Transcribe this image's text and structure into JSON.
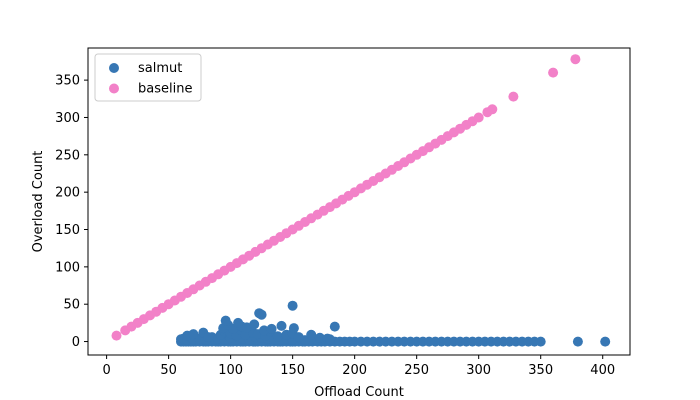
{
  "chart_data": {
    "type": "scatter",
    "title": "",
    "xlabel": "Offload Count",
    "ylabel": "Overload Count",
    "xlim": [
      -15,
      422
    ],
    "ylim": [
      -18,
      393
    ],
    "xticks": [
      0,
      50,
      100,
      150,
      200,
      250,
      300,
      350,
      400
    ],
    "yticks": [
      0,
      50,
      100,
      150,
      200,
      250,
      300,
      350
    ],
    "grid": false,
    "legend_position": "upper-left",
    "series": [
      {
        "name": "salmut",
        "color": "#3777b4",
        "x": [
          60,
          62,
          64,
          66,
          68,
          70,
          72,
          75,
          78,
          80,
          82,
          85,
          88,
          90,
          92,
          95,
          98,
          100,
          102,
          105,
          108,
          110,
          112,
          115,
          118,
          120,
          122,
          125,
          128,
          130,
          132,
          135,
          138,
          140,
          142,
          145,
          148,
          150,
          152,
          155,
          158,
          160,
          163,
          166,
          170,
          173,
          176,
          180,
          184,
          188,
          192,
          196,
          200,
          205,
          210,
          215,
          220,
          225,
          230,
          235,
          240,
          245,
          250,
          255,
          260,
          265,
          270,
          275,
          280,
          285,
          290,
          295,
          300,
          305,
          310,
          315,
          320,
          325,
          330,
          335,
          340,
          345,
          350,
          380,
          402,
          60,
          62,
          65,
          68,
          70,
          75,
          80,
          85,
          90,
          95,
          100,
          105,
          110,
          115,
          120,
          125,
          130,
          135,
          140,
          145,
          150,
          160,
          170,
          65,
          70,
          78,
          82,
          92,
          95,
          100,
          105,
          108,
          112,
          118,
          122,
          128,
          132,
          138,
          145,
          150,
          155,
          165,
          172,
          178,
          180,
          94,
          98,
          102,
          109,
          113,
          119,
          127,
          133,
          141,
          151,
          184,
          96,
          106,
          123,
          125,
          150
        ],
        "y": [
          0,
          0,
          0,
          0,
          0,
          0,
          0,
          0,
          0,
          0,
          0,
          0,
          0,
          0,
          0,
          0,
          0,
          0,
          0,
          0,
          0,
          0,
          0,
          0,
          0,
          0,
          0,
          0,
          0,
          0,
          0,
          0,
          0,
          0,
          0,
          0,
          0,
          0,
          0,
          0,
          0,
          0,
          0,
          0,
          0,
          0,
          0,
          0,
          0,
          0,
          0,
          0,
          0,
          0,
          0,
          0,
          0,
          0,
          0,
          0,
          0,
          0,
          0,
          0,
          0,
          0,
          0,
          0,
          0,
          0,
          0,
          0,
          0,
          0,
          0,
          0,
          0,
          0,
          0,
          0,
          0,
          0,
          0,
          0,
          0,
          3,
          4,
          2,
          5,
          3,
          4,
          2,
          6,
          4,
          3,
          5,
          7,
          4,
          3,
          6,
          5,
          4,
          3,
          2,
          4,
          3,
          2,
          2,
          8,
          10,
          12,
          6,
          9,
          14,
          11,
          8,
          16,
          9,
          12,
          10,
          8,
          13,
          7,
          9,
          11,
          6,
          9,
          5,
          4,
          3,
          18,
          22,
          17,
          20,
          19,
          23,
          15,
          17,
          21,
          18,
          20,
          28,
          25,
          38,
          36,
          48
        ]
      },
      {
        "name": "baseline",
        "color": "#f281c8",
        "x": [
          8,
          15,
          20,
          25,
          30,
          35,
          40,
          45,
          50,
          55,
          60,
          65,
          70,
          75,
          80,
          85,
          90,
          95,
          100,
          105,
          110,
          115,
          120,
          125,
          130,
          135,
          140,
          145,
          150,
          155,
          160,
          165,
          170,
          175,
          180,
          185,
          190,
          195,
          200,
          205,
          210,
          215,
          220,
          225,
          230,
          235,
          240,
          245,
          250,
          255,
          260,
          265,
          270,
          275,
          280,
          285,
          290,
          295,
          300,
          307,
          311,
          328,
          360,
          378
        ],
        "y": [
          8,
          15,
          20,
          25,
          30,
          35,
          40,
          45,
          50,
          55,
          60,
          65,
          70,
          75,
          80,
          85,
          90,
          95,
          100,
          105,
          110,
          115,
          120,
          125,
          130,
          135,
          140,
          145,
          150,
          155,
          160,
          165,
          170,
          175,
          180,
          185,
          190,
          195,
          200,
          205,
          210,
          215,
          220,
          225,
          230,
          235,
          240,
          245,
          250,
          255,
          260,
          265,
          270,
          275,
          280,
          285,
          290,
          295,
          300,
          307,
          311,
          328,
          360,
          378
        ]
      }
    ]
  }
}
